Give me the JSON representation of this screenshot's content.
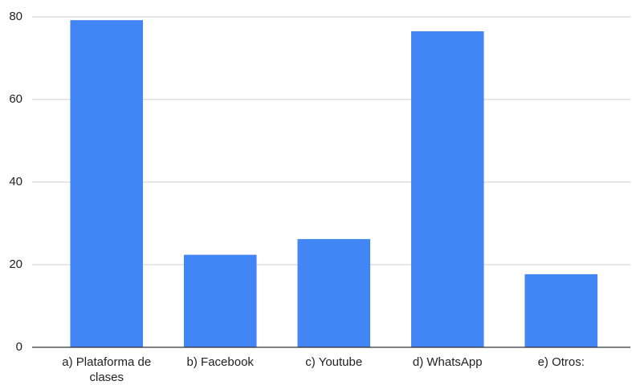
{
  "chart_data": {
    "type": "bar",
    "categories": [
      "a) Plataforma de clases",
      "b) Facebook",
      "c) Youtube",
      "d) WhatsApp",
      "e) Otros:"
    ],
    "values": [
      79.2,
      22.4,
      26.2,
      76.5,
      17.7
    ],
    "color": "#4285f4",
    "ylim": [
      0,
      80
    ],
    "yticks": [
      0,
      20,
      40,
      60,
      80
    ],
    "grid": true
  }
}
